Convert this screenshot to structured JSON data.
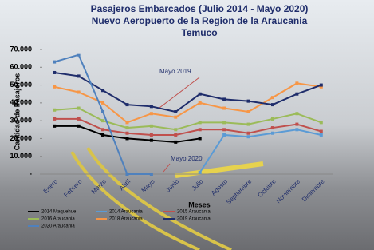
{
  "chart_data": {
    "type": "line",
    "title": [
      "Pasajeros Embarcados  (Julio 2014 - Mayo 2020)",
      "Nuevo Aeropuerto de la Region de la Araucania",
      "Temuco"
    ],
    "y_label": "Cantidad de Pasajeros",
    "x_label": "Meses",
    "categories": [
      "Enero",
      "Febrero",
      "Marzo",
      "Abril",
      "Mayo",
      "Junio",
      "Julio",
      "Agosto",
      "Septiembre",
      "Octubre",
      "Noviembre",
      "Diciembre"
    ],
    "ylim": [
      0,
      70000
    ],
    "yticks": [
      {
        "value": 0,
        "label": "-"
      },
      {
        "value": 10000,
        "label": "10.000"
      },
      {
        "value": 20000,
        "label": "20.000"
      },
      {
        "value": 30000,
        "label": "30.000"
      },
      {
        "value": 40000,
        "label": "40.000"
      },
      {
        "value": 50000,
        "label": "50.000"
      },
      {
        "value": 60000,
        "label": "60.000"
      },
      {
        "value": 70000,
        "label": "70.000"
      }
    ],
    "series": [
      {
        "name": "2014 Maquehue",
        "color": "#000000",
        "values": [
          27000,
          27000,
          22000,
          20000,
          19000,
          18000,
          20000,
          null,
          null,
          null,
          null,
          null
        ]
      },
      {
        "name": "2014 Araucania",
        "color": "#5b9bd5",
        "values": [
          null,
          null,
          null,
          null,
          null,
          null,
          1000,
          22000,
          21000,
          23000,
          25000,
          22000
        ]
      },
      {
        "name": "2015 Araucania",
        "color": "#c0504d",
        "values": [
          31000,
          31000,
          25000,
          23000,
          22000,
          22000,
          25000,
          25000,
          23000,
          26000,
          28000,
          24000
        ]
      },
      {
        "name": "2016 Araucania",
        "color": "#9bbb59",
        "values": [
          36000,
          37000,
          30000,
          26000,
          27000,
          25000,
          29000,
          29000,
          28000,
          31000,
          34000,
          29000
        ]
      },
      {
        "name": "2018 Araucania",
        "color": "#f79646",
        "values": [
          49000,
          46000,
          40000,
          29000,
          34000,
          32000,
          40000,
          37000,
          35000,
          43000,
          51000,
          49000
        ]
      },
      {
        "name": "2019 Araucania",
        "color": "#1f2d6b",
        "values": [
          57000,
          55000,
          47000,
          39000,
          38000,
          35000,
          45000,
          42000,
          41000,
          39000,
          45000,
          50000
        ]
      },
      {
        "name": "2020 Araucania",
        "color": "#4f81bd",
        "values": [
          63000,
          67000,
          35000,
          0,
          0,
          null,
          null,
          null,
          null,
          null,
          null,
          null
        ]
      }
    ],
    "annotations": [
      "Mayo 2019",
      "Mayo 2020"
    ]
  }
}
